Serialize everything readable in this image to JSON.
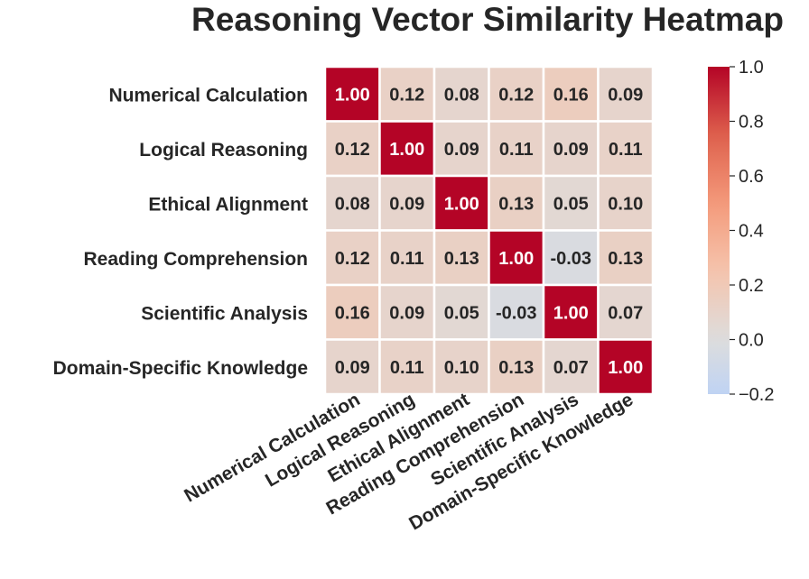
{
  "chart_data": {
    "type": "heatmap",
    "title": "Reasoning Vector Similarity Heatmap",
    "row_labels": [
      "Numerical Calculation",
      "Logical Reasoning",
      "Ethical Alignment",
      "Reading Comprehension",
      "Scientific Analysis",
      "Domain-Specific Knowledge"
    ],
    "col_labels": [
      "Numerical Calculation",
      "Logical Reasoning",
      "Ethical Alignment",
      "Reading Comprehension",
      "Scientific Analysis",
      "Domain-Specific Knowledge"
    ],
    "values": [
      [
        1.0,
        0.12,
        0.08,
        0.12,
        0.16,
        0.09
      ],
      [
        0.12,
        1.0,
        0.09,
        0.11,
        0.09,
        0.11
      ],
      [
        0.08,
        0.09,
        1.0,
        0.13,
        0.05,
        0.1
      ],
      [
        0.12,
        0.11,
        0.13,
        1.0,
        -0.03,
        0.13
      ],
      [
        0.16,
        0.09,
        0.05,
        -0.03,
        1.0,
        0.07
      ],
      [
        0.09,
        0.11,
        0.1,
        0.13,
        0.07,
        1.0
      ]
    ],
    "value_format": "0.00",
    "colormap": "coolwarm",
    "color_range": [
      -0.2,
      1.0
    ],
    "center": 0.0,
    "colorbar_ticks": [
      1.0,
      0.8,
      0.6,
      0.4,
      0.2,
      0.0,
      -0.2
    ],
    "colorbar_tick_labels": [
      "1.0",
      "0.8",
      "0.6",
      "0.4",
      "0.2",
      "0.0",
      "−0.2"
    ],
    "cell_border_color": "#ffffff",
    "text_color_dark": "#262626",
    "text_color_light": "#ffffff"
  }
}
